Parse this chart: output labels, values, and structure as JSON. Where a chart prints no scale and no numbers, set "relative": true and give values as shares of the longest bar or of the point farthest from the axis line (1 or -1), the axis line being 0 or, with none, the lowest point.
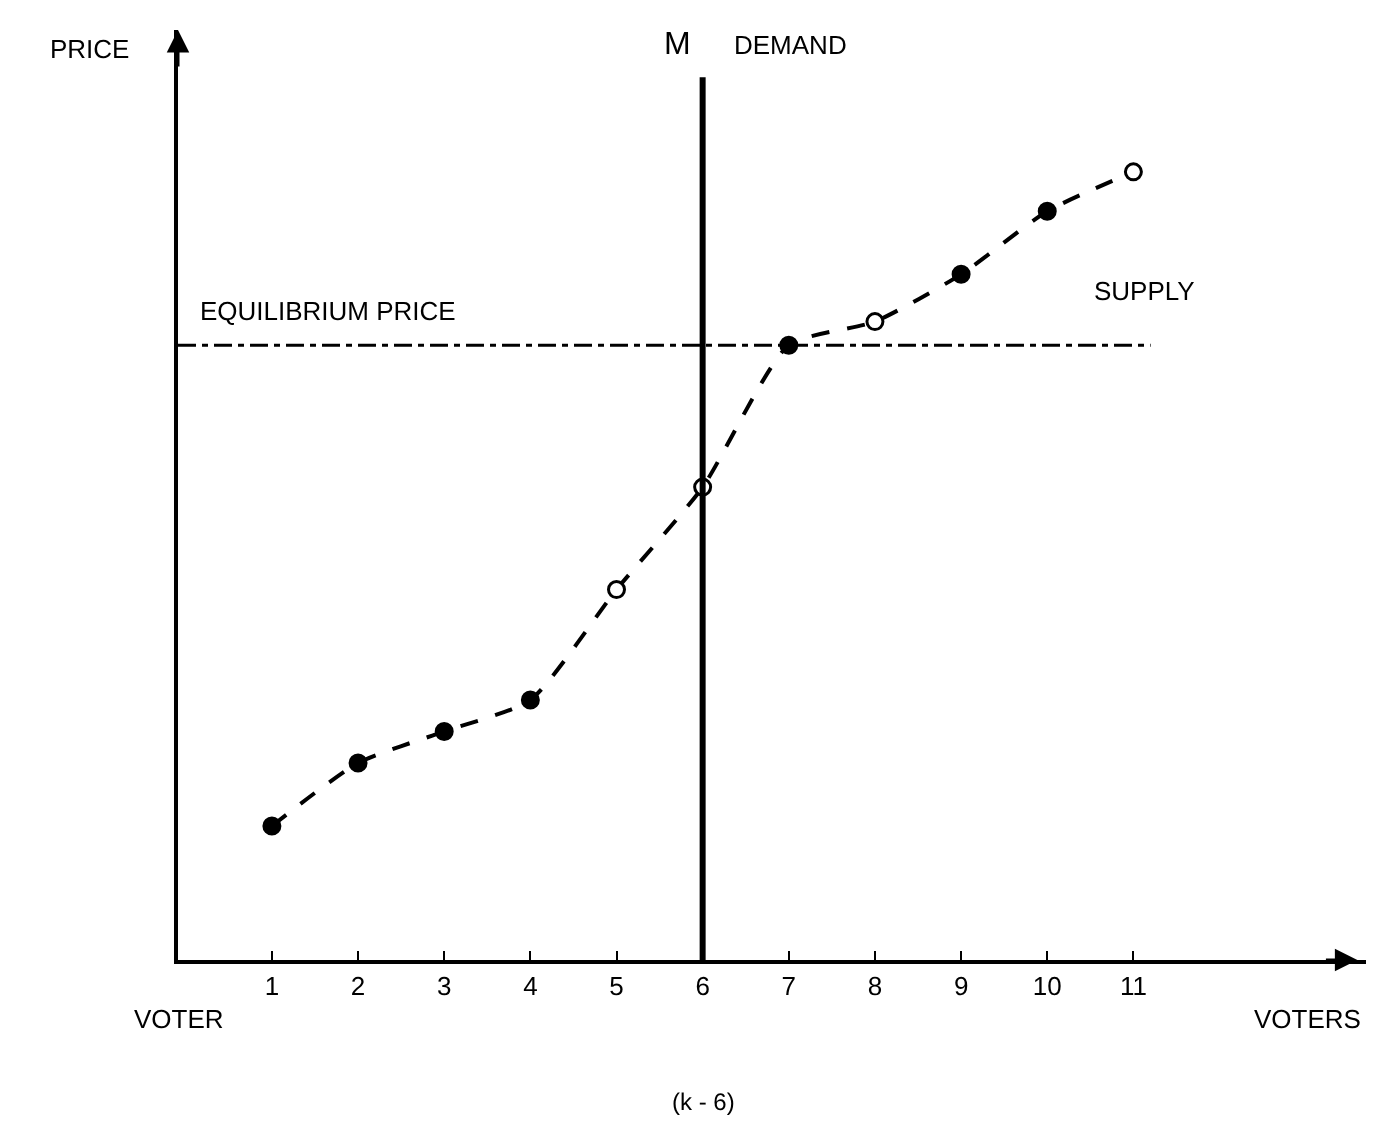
{
  "chart_data": {
    "type": "line",
    "relative": true,
    "xlabel": "VOTERS",
    "ylabel": "PRICE",
    "categories": [
      "1",
      "2",
      "3",
      "4",
      "5",
      "6",
      "7",
      "8",
      "9",
      "10",
      "11"
    ],
    "series": [
      {
        "color": "#000000",
        "colors": [
          "#000000",
          "#000000",
          "#000000",
          "#000000",
          "#ffffff",
          "#ffffff",
          "#000000",
          "#ffffff",
          "#000000",
          "#000000",
          "#ffffff"
        ],
        "values": [
          0.17,
          0.25,
          0.29,
          0.33,
          0.47,
          0.6,
          0.78,
          0.81,
          0.87,
          0.95,
          1
        ]
      }
    ],
    "marker": "circle",
    "line_style": "dashed",
    "ref_lines": [
      {
        "axis": "y",
        "value": 0.78,
        "label": "EQUILIBRIUM PRICE",
        "line_style": "dashdot",
        "color": "#000000"
      },
      {
        "axis": "x",
        "value": "6",
        "label": "DEMAND",
        "line_style": "solid",
        "color": "#000000"
      }
    ],
    "annotations": [
      "M",
      "SUPPLY",
      "VOTER",
      "(k - 6)"
    ]
  }
}
